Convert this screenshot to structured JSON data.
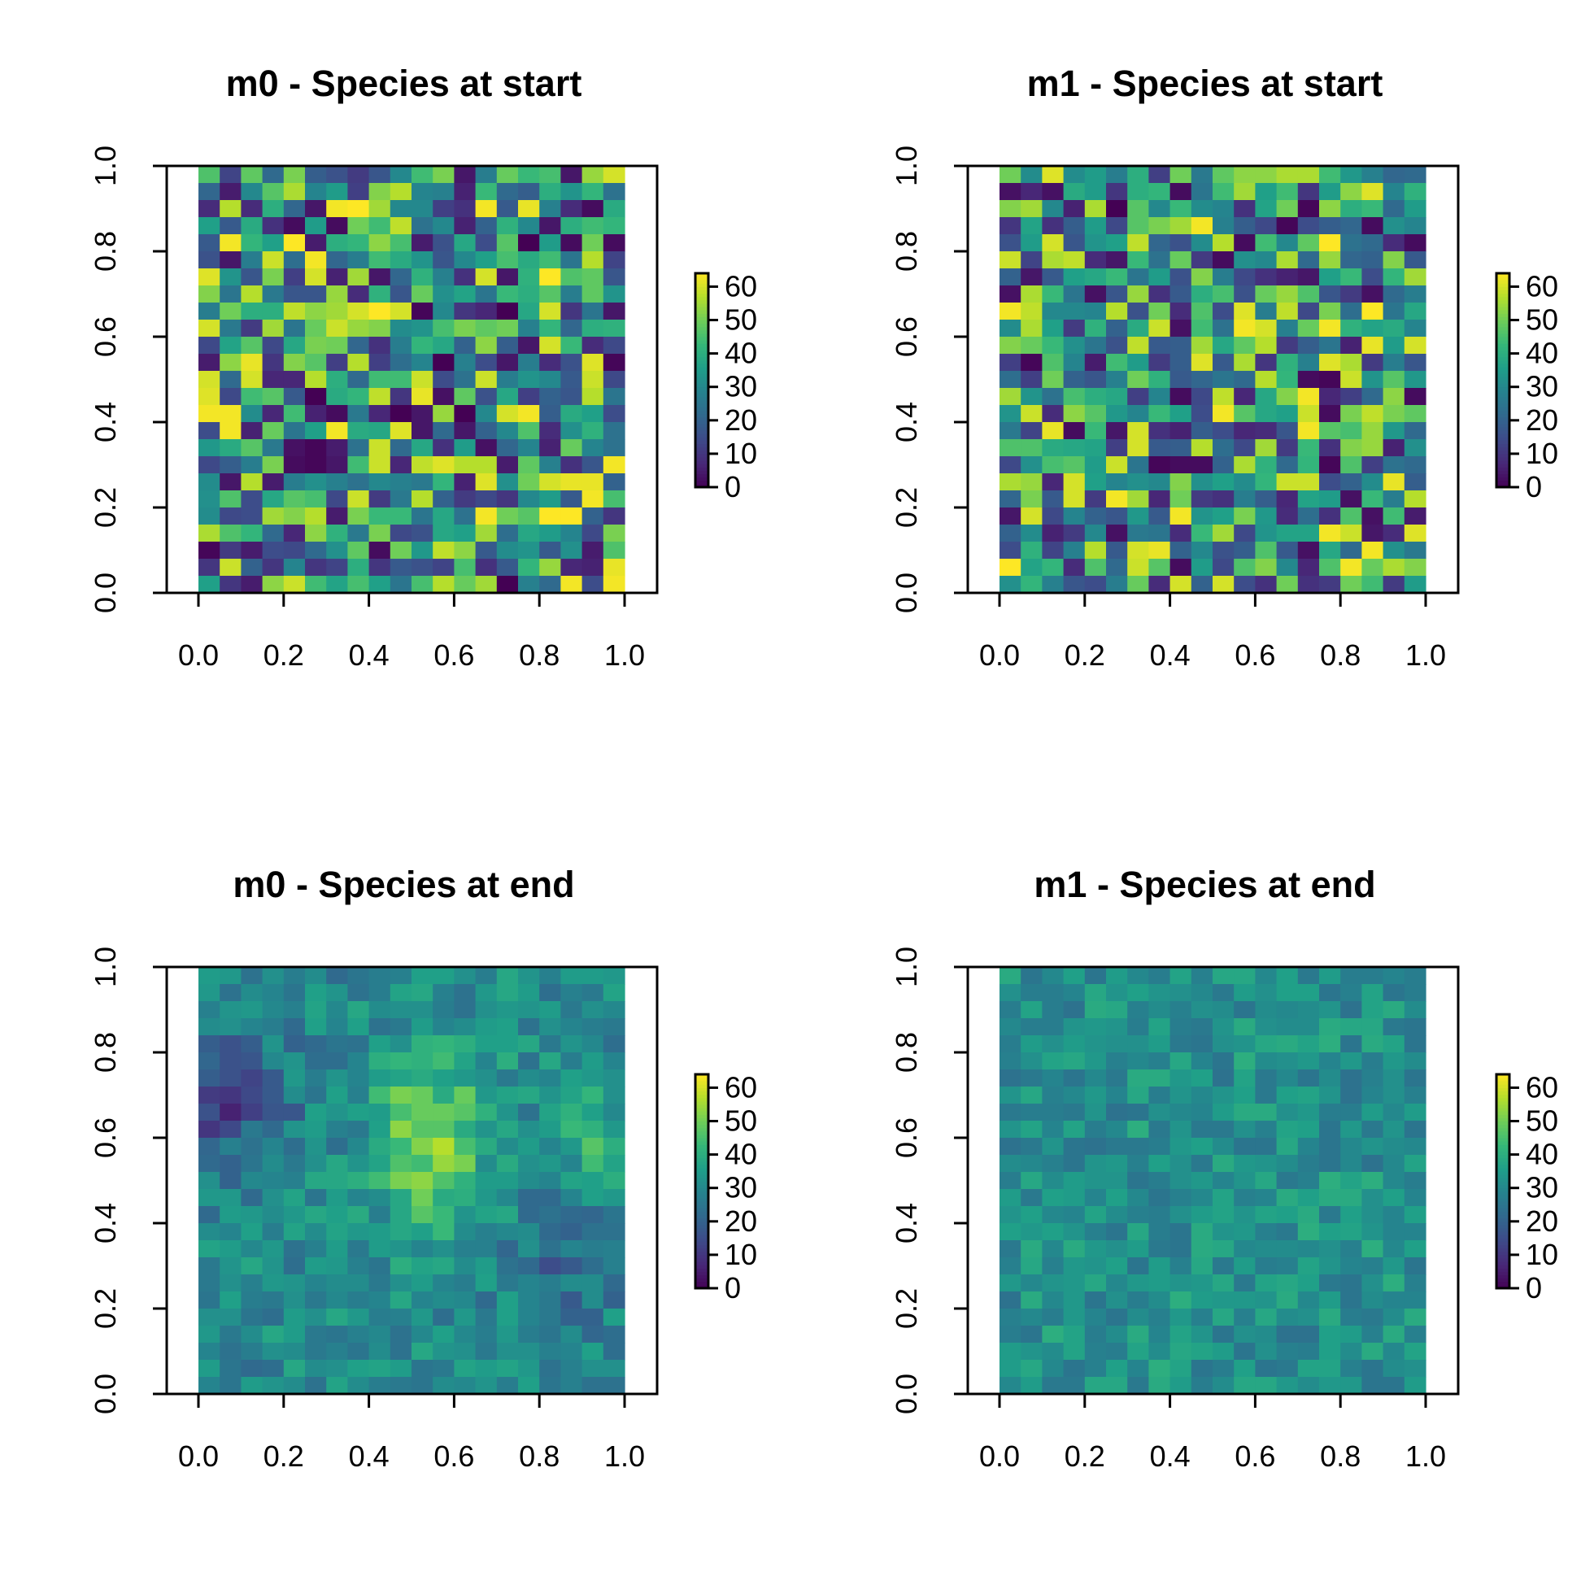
{
  "chart_data": [
    {
      "type": "heatmap",
      "title": "m0 - Species at start",
      "xlabel": "",
      "ylabel": "",
      "xlim": [
        0.0,
        1.0
      ],
      "ylim": [
        0.0,
        1.0
      ],
      "x_ticks": [
        "0.0",
        "0.2",
        "0.4",
        "0.6",
        "0.8",
        "1.0"
      ],
      "y_ticks": [
        "0.0",
        "0.2",
        "0.4",
        "0.6",
        "0.8",
        "1.0"
      ],
      "grid_cells": [
        20,
        25
      ],
      "legend": {
        "position": "right",
        "range": [
          0,
          64
        ],
        "ticks": [
          "0",
          "10",
          "20",
          "30",
          "40",
          "50",
          "60"
        ]
      },
      "value_stats": {
        "min": 0,
        "max": 64,
        "mean": 31,
        "spread": "high",
        "pattern": "random"
      }
    },
    {
      "type": "heatmap",
      "title": "m1 - Species at start",
      "xlabel": "",
      "ylabel": "",
      "xlim": [
        0.0,
        1.0
      ],
      "ylim": [
        0.0,
        1.0
      ],
      "x_ticks": [
        "0.0",
        "0.2",
        "0.4",
        "0.6",
        "0.8",
        "1.0"
      ],
      "y_ticks": [
        "0.0",
        "0.2",
        "0.4",
        "0.6",
        "0.8",
        "1.0"
      ],
      "grid_cells": [
        20,
        25
      ],
      "legend": {
        "position": "right",
        "range": [
          0,
          64
        ],
        "ticks": [
          "0",
          "10",
          "20",
          "30",
          "40",
          "50",
          "60"
        ]
      },
      "value_stats": {
        "min": 0,
        "max": 64,
        "mean": 31,
        "spread": "high",
        "pattern": "random"
      }
    },
    {
      "type": "heatmap",
      "title": "m0 - Species at end",
      "xlabel": "",
      "ylabel": "",
      "xlim": [
        0.0,
        1.0
      ],
      "ylim": [
        0.0,
        1.0
      ],
      "x_ticks": [
        "0.0",
        "0.2",
        "0.4",
        "0.6",
        "0.8",
        "1.0"
      ],
      "y_ticks": [
        "0.0",
        "0.2",
        "0.4",
        "0.6",
        "0.8",
        "1.0"
      ],
      "grid_cells": [
        20,
        25
      ],
      "legend": {
        "position": "right",
        "range": [
          0,
          64
        ],
        "ticks": [
          "0",
          "10",
          "20",
          "30",
          "40",
          "50",
          "60"
        ]
      },
      "value_stats": {
        "min": 2,
        "max": 60,
        "mean": 30,
        "spread": "medium",
        "pattern": "clustered"
      }
    },
    {
      "type": "heatmap",
      "title": "m1 - Species at end",
      "xlabel": "",
      "ylabel": "",
      "xlim": [
        0.0,
        1.0
      ],
      "ylim": [
        0.0,
        1.0
      ],
      "x_ticks": [
        "0.0",
        "0.2",
        "0.4",
        "0.6",
        "0.8",
        "1.0"
      ],
      "y_ticks": [
        "0.0",
        "0.2",
        "0.4",
        "0.6",
        "0.8",
        "1.0"
      ],
      "grid_cells": [
        20,
        25
      ],
      "legend": {
        "position": "right",
        "range": [
          0,
          64
        ],
        "ticks": [
          "0",
          "10",
          "20",
          "30",
          "40",
          "50",
          "60"
        ]
      },
      "value_stats": {
        "min": 20,
        "max": 42,
        "mean": 31,
        "spread": "low",
        "pattern": "homogeneous"
      }
    }
  ],
  "colorscale": {
    "name": "viridis",
    "stops": [
      "#440154",
      "#482878",
      "#3E4A89",
      "#31688E",
      "#26828E",
      "#1F9E89",
      "#35B779",
      "#6DCD59",
      "#B4DE2C",
      "#FDE725"
    ]
  }
}
